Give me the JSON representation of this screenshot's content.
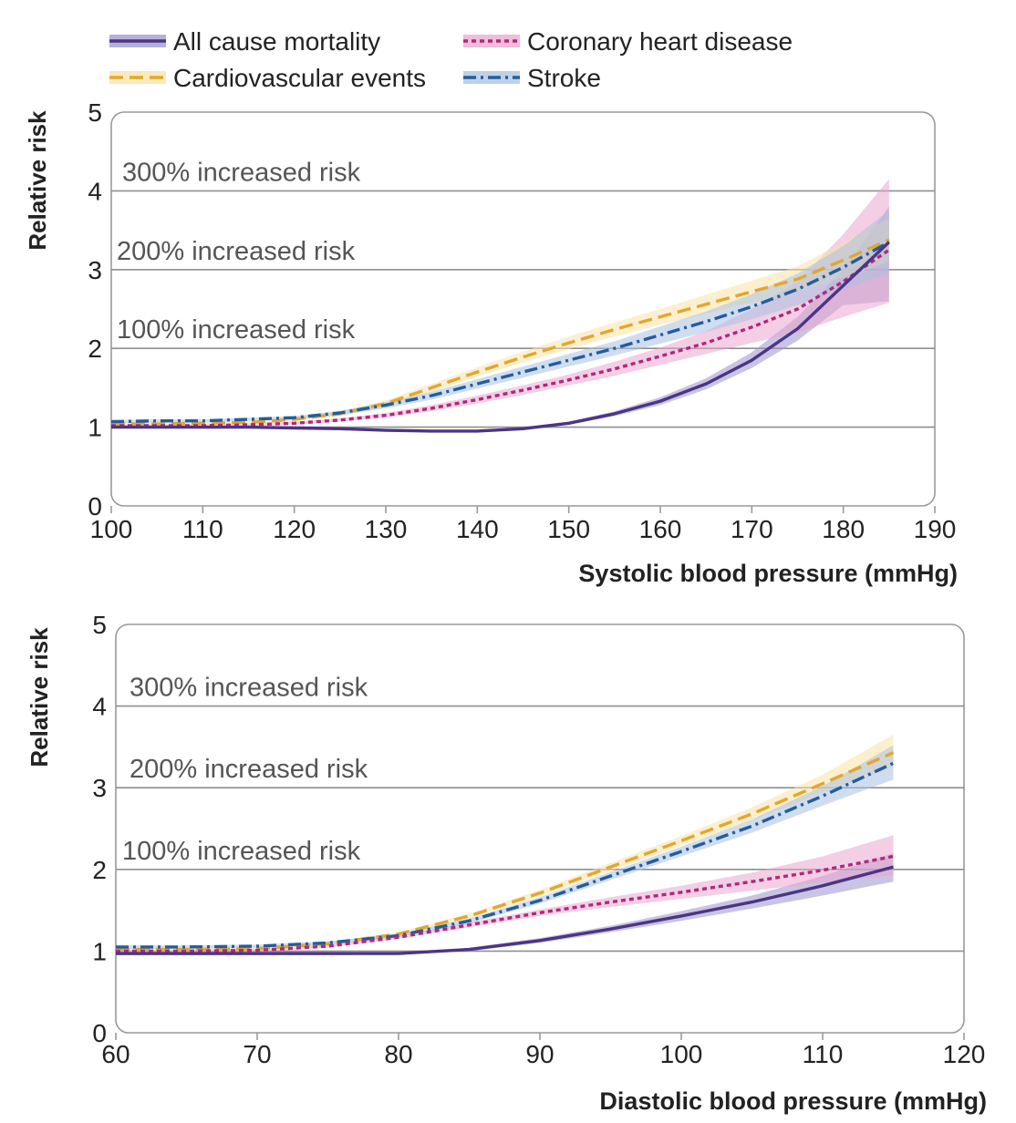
{
  "legend": {
    "items": [
      {
        "label": "All cause mortality",
        "series": "All cause mortality"
      },
      {
        "label": "Coronary heart disease",
        "series": "Coronary heart disease"
      },
      {
        "label": "Cardiovascular events",
        "series": "Cardiovascular events"
      },
      {
        "label": "Stroke",
        "series": "Stroke"
      }
    ]
  },
  "styles": {
    "All cause mortality": {
      "color": "#4b3585",
      "band": "#9c94cc",
      "dash": "solid"
    },
    "Coronary heart disease": {
      "color": "#b0287c",
      "band": "#e9a6cf",
      "dash": "dotted"
    },
    "Cardiovascular events": {
      "color": "#e2a72e",
      "band": "#f8e2a6",
      "dash": "dashed"
    },
    "Stroke": {
      "color": "#235d9b",
      "band": "#a9c1e1",
      "dash": "dashdot"
    }
  },
  "chart_data": [
    {
      "type": "line",
      "ylabel": "Relative risk",
      "xlabel": "Systolic blood pressure (mmHg)",
      "xlim": [
        100,
        190
      ],
      "ylim": [
        0,
        5
      ],
      "xticks": [
        100,
        110,
        120,
        130,
        140,
        150,
        160,
        170,
        180,
        190
      ],
      "yticks": [
        0,
        1,
        2,
        3,
        4,
        5
      ],
      "grid": "horizontal",
      "legend": "top",
      "reference_lines": [
        {
          "y": 1,
          "label": ""
        },
        {
          "y": 2,
          "label": "100% increased risk"
        },
        {
          "y": 3,
          "label": "200% increased risk"
        },
        {
          "y": 4,
          "label": "300% increased risk"
        }
      ],
      "series": [
        {
          "name": "All cause mortality",
          "x": [
            100,
            105,
            110,
            115,
            120,
            125,
            130,
            135,
            140,
            145,
            150,
            155,
            160,
            165,
            170,
            175,
            180,
            185
          ],
          "y": [
            1.0,
            1.0,
            1.0,
            1.0,
            0.99,
            0.98,
            0.96,
            0.95,
            0.95,
            0.98,
            1.05,
            1.17,
            1.33,
            1.55,
            1.85,
            2.25,
            2.8,
            3.35
          ],
          "y_low": [
            0.98,
            0.98,
            0.98,
            0.98,
            0.98,
            0.97,
            0.95,
            0.94,
            0.94,
            0.97,
            1.03,
            1.14,
            1.28,
            1.48,
            1.75,
            2.1,
            2.55,
            2.6
          ],
          "y_high": [
            1.02,
            1.02,
            1.02,
            1.01,
            1.0,
            0.99,
            0.97,
            0.96,
            0.96,
            1.0,
            1.07,
            1.2,
            1.38,
            1.62,
            1.95,
            2.4,
            3.0,
            3.8
          ]
        },
        {
          "name": "Coronary heart disease",
          "x": [
            100,
            105,
            110,
            115,
            120,
            125,
            130,
            135,
            140,
            145,
            150,
            155,
            160,
            165,
            170,
            175,
            180,
            185
          ],
          "y": [
            1.02,
            1.02,
            1.02,
            1.03,
            1.05,
            1.09,
            1.15,
            1.24,
            1.35,
            1.47,
            1.6,
            1.74,
            1.9,
            2.07,
            2.27,
            2.5,
            2.85,
            3.25
          ],
          "y_low": [
            1.0,
            1.0,
            1.0,
            1.01,
            1.03,
            1.07,
            1.12,
            1.2,
            1.3,
            1.41,
            1.53,
            1.65,
            1.79,
            1.93,
            2.07,
            2.2,
            2.4,
            2.58
          ],
          "y_high": [
            1.04,
            1.04,
            1.04,
            1.05,
            1.07,
            1.11,
            1.18,
            1.28,
            1.4,
            1.53,
            1.67,
            1.83,
            2.01,
            2.22,
            2.5,
            2.85,
            3.45,
            4.15
          ]
        },
        {
          "name": "Cardiovascular events",
          "x": [
            100,
            105,
            110,
            115,
            120,
            125,
            130,
            135,
            140,
            145,
            150,
            155,
            160,
            165,
            170,
            175,
            180,
            185
          ],
          "y": [
            1.04,
            1.04,
            1.05,
            1.06,
            1.1,
            1.17,
            1.3,
            1.5,
            1.7,
            1.89,
            2.07,
            2.24,
            2.4,
            2.56,
            2.72,
            2.88,
            3.12,
            3.38
          ],
          "y_low": [
            1.02,
            1.02,
            1.03,
            1.04,
            1.08,
            1.14,
            1.26,
            1.45,
            1.64,
            1.82,
            1.99,
            2.15,
            2.3,
            2.44,
            2.58,
            2.72,
            2.9,
            3.1
          ],
          "y_high": [
            1.06,
            1.06,
            1.07,
            1.08,
            1.12,
            1.2,
            1.34,
            1.55,
            1.76,
            1.96,
            2.15,
            2.33,
            2.5,
            2.68,
            2.86,
            3.04,
            3.35,
            3.65
          ]
        },
        {
          "name": "Stroke",
          "x": [
            100,
            105,
            110,
            115,
            120,
            125,
            130,
            135,
            140,
            145,
            150,
            155,
            160,
            165,
            170,
            175,
            180,
            185
          ],
          "y": [
            1.07,
            1.08,
            1.08,
            1.1,
            1.12,
            1.18,
            1.28,
            1.4,
            1.55,
            1.7,
            1.85,
            2.0,
            2.17,
            2.34,
            2.53,
            2.75,
            3.03,
            3.35
          ],
          "y_low": [
            1.05,
            1.06,
            1.06,
            1.08,
            1.1,
            1.15,
            1.24,
            1.35,
            1.49,
            1.63,
            1.77,
            1.91,
            2.06,
            2.21,
            2.37,
            2.55,
            2.75,
            2.95
          ],
          "y_high": [
            1.09,
            1.1,
            1.1,
            1.12,
            1.14,
            1.21,
            1.32,
            1.45,
            1.61,
            1.77,
            1.93,
            2.09,
            2.28,
            2.47,
            2.69,
            2.95,
            3.3,
            3.75
          ]
        }
      ]
    },
    {
      "type": "line",
      "ylabel": "Relative risk",
      "xlabel": "Diastolic blood pressure (mmHg)",
      "xlim": [
        60,
        120
      ],
      "ylim": [
        0,
        5
      ],
      "xticks": [
        60,
        70,
        80,
        90,
        100,
        110,
        120
      ],
      "yticks": [
        0,
        1,
        2,
        3,
        4,
        5
      ],
      "grid": "horizontal",
      "legend": "none",
      "reference_lines": [
        {
          "y": 1,
          "label": ""
        },
        {
          "y": 2,
          "label": "100% increased risk"
        },
        {
          "y": 3,
          "label": "200% increased risk"
        },
        {
          "y": 4,
          "label": "300% increased risk"
        }
      ],
      "series": [
        {
          "name": "All cause mortality",
          "x": [
            60,
            65,
            70,
            75,
            80,
            85,
            90,
            95,
            100,
            105,
            110,
            115
          ],
          "y": [
            0.97,
            0.97,
            0.97,
            0.97,
            0.97,
            1.02,
            1.13,
            1.27,
            1.43,
            1.6,
            1.8,
            2.03
          ],
          "y_low": [
            0.95,
            0.95,
            0.95,
            0.95,
            0.96,
            1.0,
            1.1,
            1.23,
            1.37,
            1.52,
            1.68,
            1.85
          ],
          "y_high": [
            0.99,
            0.99,
            0.99,
            0.99,
            0.99,
            1.04,
            1.16,
            1.31,
            1.49,
            1.68,
            1.92,
            2.2
          ]
        },
        {
          "name": "Coronary heart disease",
          "x": [
            60,
            65,
            70,
            75,
            80,
            85,
            90,
            95,
            100,
            105,
            110,
            115
          ],
          "y": [
            1.0,
            1.0,
            1.01,
            1.06,
            1.17,
            1.32,
            1.47,
            1.6,
            1.72,
            1.85,
            1.99,
            2.16
          ],
          "y_low": [
            0.98,
            0.98,
            0.99,
            1.04,
            1.15,
            1.29,
            1.43,
            1.54,
            1.64,
            1.74,
            1.84,
            1.93
          ],
          "y_high": [
            1.02,
            1.02,
            1.03,
            1.08,
            1.19,
            1.35,
            1.51,
            1.66,
            1.8,
            1.96,
            2.16,
            2.42
          ]
        },
        {
          "name": "Cardiovascular events",
          "x": [
            60,
            65,
            70,
            75,
            80,
            85,
            90,
            95,
            100,
            105,
            110,
            115
          ],
          "y": [
            1.02,
            1.02,
            1.03,
            1.09,
            1.21,
            1.43,
            1.71,
            2.03,
            2.35,
            2.68,
            3.05,
            3.43
          ],
          "y_low": [
            1.0,
            1.0,
            1.01,
            1.07,
            1.19,
            1.4,
            1.67,
            1.98,
            2.29,
            2.6,
            2.94,
            3.25
          ],
          "y_high": [
            1.04,
            1.04,
            1.05,
            1.11,
            1.23,
            1.46,
            1.75,
            2.08,
            2.41,
            2.76,
            3.16,
            3.65
          ]
        },
        {
          "name": "Stroke",
          "x": [
            60,
            65,
            70,
            75,
            80,
            85,
            90,
            95,
            100,
            105,
            110,
            115
          ],
          "y": [
            1.05,
            1.05,
            1.06,
            1.1,
            1.19,
            1.37,
            1.62,
            1.92,
            2.22,
            2.53,
            2.9,
            3.3
          ],
          "y_low": [
            1.03,
            1.03,
            1.04,
            1.08,
            1.17,
            1.34,
            1.58,
            1.87,
            2.16,
            2.45,
            2.78,
            3.1
          ],
          "y_high": [
            1.07,
            1.07,
            1.08,
            1.12,
            1.21,
            1.4,
            1.66,
            1.97,
            2.28,
            2.61,
            3.02,
            3.52
          ]
        }
      ]
    }
  ]
}
